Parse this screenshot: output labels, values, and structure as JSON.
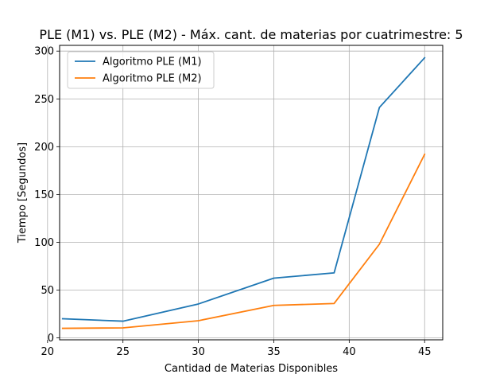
{
  "chart_data": {
    "type": "line",
    "title": "PLE (M1) vs. PLE (M2) - Máx. cant. de materias por cuatrimestre: 5",
    "xlabel": "Cantidad de Materias Disponibles",
    "ylabel": "Tiempo [Segundos]",
    "xlim": [
      20.8,
      46.2
    ],
    "ylim": [
      -2,
      306
    ],
    "x_ticks": [
      20,
      25,
      30,
      35,
      40,
      45
    ],
    "y_ticks": [
      0,
      50,
      100,
      150,
      200,
      250,
      300
    ],
    "grid": true,
    "legend_position": "top-left",
    "x": [
      21,
      25,
      30,
      35,
      39,
      42,
      45
    ],
    "series": [
      {
        "name": "Algoritmo PLE (M1)",
        "color": "#1f77b4",
        "values": [
          20,
          17.5,
          35.5,
          62.5,
          68,
          241,
          293
        ]
      },
      {
        "name": "Algoritmo PLE (M2)",
        "color": "#ff7f0e",
        "values": [
          10,
          10.5,
          18,
          34,
          36,
          98,
          192
        ]
      }
    ]
  }
}
